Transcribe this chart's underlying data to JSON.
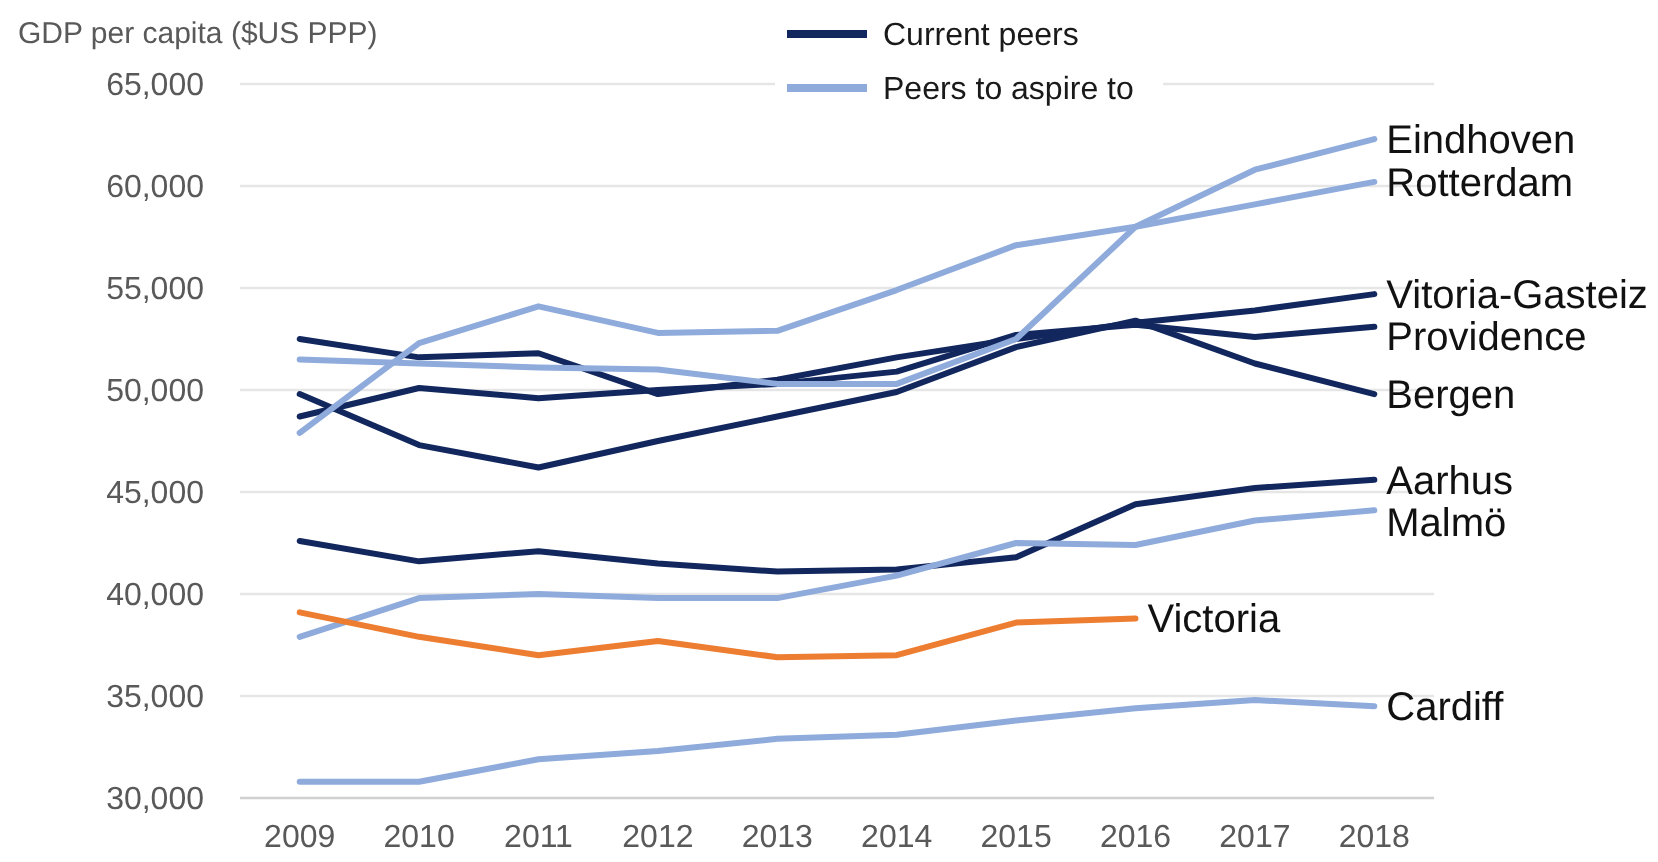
{
  "chart_data": {
    "type": "line",
    "ylabel": "GDP per capita ($US PPP)",
    "categories": [
      "2009",
      "2010",
      "2011",
      "2012",
      "2013",
      "2014",
      "2015",
      "2016",
      "2017",
      "2018"
    ],
    "ylim": [
      30000,
      65000
    ],
    "yticks": [
      {
        "value": 30000,
        "label": "30,000"
      },
      {
        "value": 35000,
        "label": "35,000"
      },
      {
        "value": 40000,
        "label": "40,000"
      },
      {
        "value": 45000,
        "label": "45,000"
      },
      {
        "value": 50000,
        "label": "50,000"
      },
      {
        "value": 55000,
        "label": "55,000"
      },
      {
        "value": 60000,
        "label": "60,000"
      },
      {
        "value": 65000,
        "label": "65,000"
      }
    ],
    "grid": "y",
    "legend": "top",
    "annotations": [
      "Current peers",
      "Peers to aspire to"
    ],
    "series": [
      {
        "name": "Vitoria-Gasteiz",
        "color": "#12275e",
        "values": [
          52500,
          51600,
          51800,
          49800,
          50500,
          51600,
          52500,
          53300,
          53900,
          54700
        ]
      },
      {
        "name": "Providence",
        "color": "#12275e",
        "values": [
          48700,
          50100,
          49600,
          50000,
          50300,
          50900,
          52700,
          53200,
          52600,
          53100
        ]
      },
      {
        "name": "Bergen",
        "color": "#12275e",
        "values": [
          49800,
          47300,
          46200,
          47500,
          48700,
          49900,
          52100,
          53400,
          51300,
          49800
        ]
      },
      {
        "name": "Aarhus",
        "color": "#12275e",
        "values": [
          42600,
          41600,
          42100,
          41500,
          41100,
          41200,
          41800,
          44400,
          45200,
          45600
        ]
      },
      {
        "name": "Eindhoven",
        "color": "#8fabdc",
        "values": [
          51500,
          51300,
          51100,
          51000,
          50300,
          50300,
          52500,
          58000,
          60800,
          62300
        ]
      },
      {
        "name": "Rotterdam",
        "color": "#8fabdc",
        "values": [
          47900,
          52300,
          54100,
          52800,
          52900,
          54900,
          57100,
          58000,
          59100,
          60200
        ]
      },
      {
        "name": "Malmö",
        "color": "#8fabdc",
        "values": [
          37900,
          39800,
          40000,
          39800,
          39800,
          40900,
          42500,
          42400,
          43600,
          44100
        ]
      },
      {
        "name": "Cardiff",
        "color": "#8fabdc",
        "values": [
          30800,
          30800,
          31900,
          32300,
          32900,
          33100,
          33800,
          34400,
          34800,
          34500
        ]
      },
      {
        "name": "Victoria",
        "color": "#ed7d31",
        "values": [
          39100,
          37900,
          37000,
          37700,
          36900,
          37000,
          38600,
          38800,
          null,
          null
        ]
      }
    ]
  }
}
